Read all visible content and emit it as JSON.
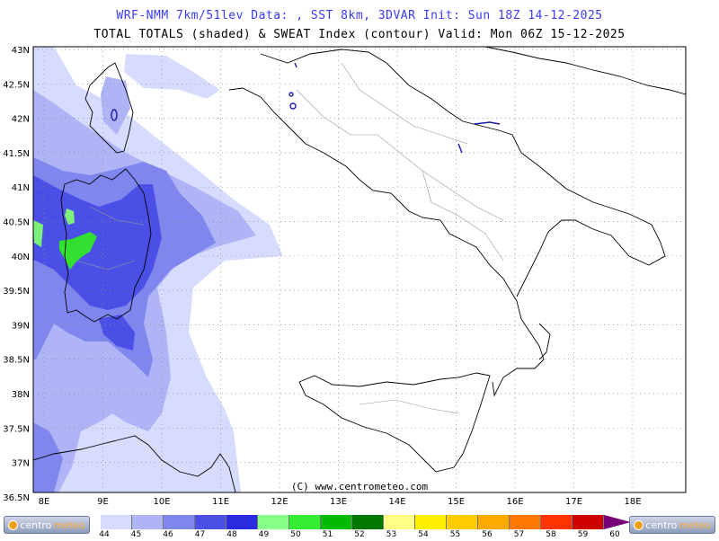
{
  "header": {
    "line1": "WRF-NMM 7km/51lev  Data: , SST 8km, 3DVAR  Init: Sun 18Z 14-12-2025",
    "line2": "TOTAL TOTALS (shaded) & SWEAT Index (contour)  Valid: Mon 06Z 15-12-2025"
  },
  "map": {
    "lat_labels": [
      "43N",
      "42.5N",
      "42N",
      "41.5N",
      "41N",
      "40.5N",
      "40N",
      "39.5N",
      "39N",
      "38.5N",
      "38N",
      "37.5N",
      "37N",
      "36.5N"
    ],
    "lon_labels": [
      "8E",
      "9E",
      "10E",
      "11E",
      "12E",
      "13E",
      "14E",
      "15E",
      "16E",
      "17E",
      "18E"
    ],
    "copyright": "(C) www.centrometeo.com",
    "shade_colors": {
      "c44": "#d7dcff",
      "c45": "#aeb4f5",
      "c46": "#7f86ee",
      "c47": "#4a50e6",
      "c48": "#7df07a",
      "c49": "#31e031"
    }
  },
  "legend": {
    "values": [
      "44",
      "45",
      "46",
      "47",
      "48",
      "49",
      "50",
      "51",
      "52",
      "53",
      "54",
      "55",
      "56",
      "57",
      "58",
      "59",
      "60"
    ],
    "colors": [
      "#d7dcff",
      "#aeb4f5",
      "#7f86ee",
      "#4a50e6",
      "#2a2adf",
      "#88ff88",
      "#33ee33",
      "#00bb00",
      "#007700",
      "#ffff88",
      "#ffee00",
      "#ffcc00",
      "#ffaa00",
      "#ff7700",
      "#ff3300",
      "#cc0000",
      "#ff55ff",
      "#cc00cc",
      "#770077"
    ],
    "logo_left": {
      "text_a": "centro",
      "text_b": "meteo"
    },
    "logo_right": {
      "text_a": "centro",
      "text_b": "meteo"
    }
  }
}
